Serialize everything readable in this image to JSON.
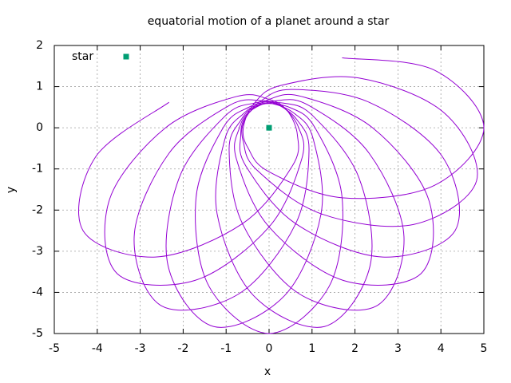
{
  "chart_data": {
    "type": "line",
    "title": "equatorial motion of a planet around a star",
    "x_label": "x",
    "y_label": "y",
    "xlim": [
      -5,
      5
    ],
    "ylim": [
      -5,
      2
    ],
    "xticks": [
      -5,
      -4,
      -3,
      -2,
      -1,
      0,
      1,
      2,
      3,
      4,
      5
    ],
    "yticks": [
      -5,
      -4,
      -3,
      -2,
      -1,
      0,
      1,
      2
    ],
    "grid": true,
    "legend": "top left",
    "series": [
      {
        "type": "line",
        "color": "#9400d3",
        "x": [
          -2.33,
          -4.04,
          -4.33,
          -2.64,
          -0.62,
          0.54,
          0.66,
          0.42,
          0,
          -0.76,
          -2.41,
          -3.71,
          -3.54,
          -1.73,
          0,
          0.76,
          0.69,
          0.3,
          -0.18,
          -0.93,
          -2.33,
          -3.14,
          -2.5,
          -0.71,
          0.62,
          0.93,
          0.66,
          0.16,
          -0.34,
          -1.03,
          -2.09,
          -2.35,
          -1.29,
          0.36,
          1.21,
          1.03,
          0.6,
          0,
          -0.49,
          -1.07,
          -1.7,
          -1.4,
          0,
          1.4,
          1.7,
          1.07,
          0.49,
          -0.16,
          -0.6,
          -1.03,
          -1.21,
          -0.36,
          1.29,
          2.35,
          2.09,
          1.03,
          0.34,
          -0.3,
          -0.66,
          -0.93,
          -0.62,
          0.71,
          2.5,
          3.14,
          2.33,
          0.93,
          0.18,
          -0.42,
          -0.69,
          -0.76,
          0,
          1.73,
          3.54,
          3.71,
          2.41,
          0.76,
          0,
          -0.52,
          -0.66,
          -0.54,
          0.62,
          2.64,
          4.33,
          4.04,
          2.33,
          0.54,
          -0.18,
          -0.58,
          -0.6,
          -0.28,
          1.21,
          3.36,
          4.83,
          4.08,
          2.09,
          0.28,
          -0.34,
          -0.6,
          -0.49,
          0,
          1.7,
          3.85,
          5,
          3.85,
          1.7
        ],
        "y": [
          0.62,
          -0.71,
          -2.5,
          -3.14,
          -2.33,
          -0.93,
          -0.18,
          0.42,
          0.69,
          0.76,
          0,
          -1.73,
          -3.54,
          -3.71,
          -2.41,
          -0.76,
          0,
          0.52,
          0.66,
          0.54,
          -0.62,
          -2.64,
          -4.33,
          -4.04,
          -2.33,
          -0.54,
          0.18,
          0.58,
          0.6,
          0.28,
          -1.21,
          -3.36,
          -4.83,
          -4.08,
          -2.09,
          -0.28,
          0.34,
          0.6,
          0.49,
          0,
          -1.7,
          -3.85,
          -5,
          -3.85,
          -1.7,
          0,
          0.49,
          0.58,
          0.34,
          -0.28,
          -2.09,
          -4.08,
          -4.83,
          -3.36,
          -1.21,
          0.28,
          0.6,
          0.52,
          0.18,
          -0.54,
          -2.33,
          -4.04,
          -4.33,
          -2.64,
          -0.62,
          0.54,
          0.66,
          0.42,
          0,
          -0.76,
          -2.41,
          -3.71,
          -3.54,
          -1.73,
          0,
          0.76,
          0.69,
          0.3,
          -0.18,
          -0.93,
          -2.33,
          -3.14,
          -2.5,
          -0.71,
          0.62,
          0.93,
          0.66,
          0.16,
          -0.34,
          -1.03,
          -2.09,
          -2.35,
          -1.29,
          0.36,
          1.21,
          1.03,
          0.6,
          0,
          -0.49,
          -1.07,
          -1.7,
          -1.4,
          0,
          1.4,
          1.7
        ]
      },
      {
        "type": "scatter",
        "name": "star",
        "color": "#009e73",
        "x": [
          0
        ],
        "y": [
          0
        ]
      }
    ]
  }
}
